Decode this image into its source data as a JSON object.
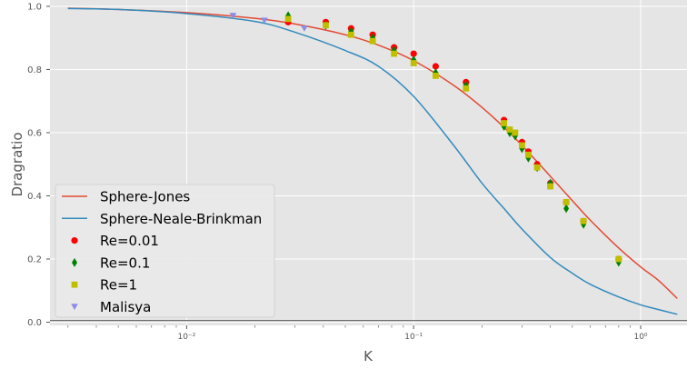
{
  "chart_data": {
    "type": "scatter",
    "xlabel": "K",
    "ylabel": "Dragratio",
    "x_scale": "log",
    "xlim": [
      0.0025,
      1.6
    ],
    "ylim": [
      -0.01,
      1.02
    ],
    "grid": true,
    "legend_position": "lower-left",
    "x_ticks": [
      {
        "value": 0.01,
        "label": "10⁻²"
      },
      {
        "value": 0.1,
        "label": "10⁻¹"
      },
      {
        "value": 1,
        "label": "10⁰"
      }
    ],
    "y_ticks": [
      {
        "value": 0.0,
        "label": "0.0"
      },
      {
        "value": 0.2,
        "label": "0.2"
      },
      {
        "value": 0.4,
        "label": "0.4"
      },
      {
        "value": 0.6,
        "label": "0.6"
      },
      {
        "value": 0.8,
        "label": "0.8"
      },
      {
        "value": 1.0,
        "label": "1.0"
      }
    ],
    "series": [
      {
        "name": "Sphere-Jones",
        "kind": "line",
        "color": "#e24a33",
        "x": [
          0.003,
          0.005,
          0.01,
          0.02,
          0.03,
          0.05,
          0.07,
          0.1,
          0.15,
          0.2,
          0.25,
          0.3,
          0.4,
          0.5,
          0.6,
          0.8,
          1.0,
          1.2,
          1.45
        ],
        "y": [
          0.994,
          0.99,
          0.98,
          0.962,
          0.944,
          0.91,
          0.877,
          0.828,
          0.75,
          0.68,
          0.617,
          0.56,
          0.462,
          0.385,
          0.323,
          0.235,
          0.175,
          0.132,
          0.075
        ]
      },
      {
        "name": "Sphere-Neale-Brinkman",
        "kind": "line",
        "color": "#348abd",
        "x": [
          0.003,
          0.005,
          0.01,
          0.02,
          0.03,
          0.05,
          0.07,
          0.1,
          0.15,
          0.2,
          0.25,
          0.3,
          0.4,
          0.5,
          0.6,
          0.8,
          1.0,
          1.2,
          1.45
        ],
        "y": [
          0.993,
          0.99,
          0.977,
          0.952,
          0.918,
          0.86,
          0.81,
          0.715,
          0.56,
          0.44,
          0.36,
          0.295,
          0.205,
          0.155,
          0.12,
          0.08,
          0.055,
          0.04,
          0.025
        ]
      },
      {
        "name": "Re=0.01",
        "kind": "scatter",
        "marker": "circle",
        "color": "#ff0000",
        "x": [
          0.028,
          0.041,
          0.053,
          0.066,
          0.082,
          0.1,
          0.125,
          0.17,
          0.25,
          0.3,
          0.32,
          0.35,
          0.4,
          0.47,
          0.56,
          0.8
        ],
        "y": [
          0.95,
          0.95,
          0.93,
          0.91,
          0.87,
          0.85,
          0.81,
          0.76,
          0.64,
          0.57,
          0.54,
          0.5,
          0.44,
          0.38,
          0.32,
          0.2
        ]
      },
      {
        "name": "Re=0.1",
        "kind": "scatter",
        "marker": "diamond",
        "color": "#008000",
        "x": [
          0.028,
          0.041,
          0.053,
          0.066,
          0.082,
          0.1,
          0.125,
          0.17,
          0.25,
          0.265,
          0.28,
          0.3,
          0.32,
          0.35,
          0.4,
          0.47,
          0.56,
          0.8
        ],
        "y": [
          0.97,
          0.94,
          0.92,
          0.9,
          0.86,
          0.83,
          0.79,
          0.75,
          0.62,
          0.6,
          0.59,
          0.55,
          0.52,
          0.49,
          0.44,
          0.36,
          0.31,
          0.19
        ]
      },
      {
        "name": "Re=1",
        "kind": "scatter",
        "marker": "square",
        "color": "#bfbf00",
        "x": [
          0.028,
          0.041,
          0.053,
          0.066,
          0.082,
          0.1,
          0.125,
          0.17,
          0.25,
          0.265,
          0.28,
          0.3,
          0.32,
          0.35,
          0.4,
          0.47,
          0.56,
          0.8
        ],
        "y": [
          0.96,
          0.94,
          0.91,
          0.89,
          0.85,
          0.82,
          0.78,
          0.74,
          0.63,
          0.61,
          0.6,
          0.56,
          0.53,
          0.49,
          0.43,
          0.38,
          0.32,
          0.2
        ]
      },
      {
        "name": "Malisya",
        "kind": "scatter",
        "marker": "triangle-down",
        "color": "#8c8ce6",
        "x": [
          0.016,
          0.022,
          0.033
        ],
        "y": [
          0.97,
          0.955,
          0.93
        ]
      }
    ]
  }
}
